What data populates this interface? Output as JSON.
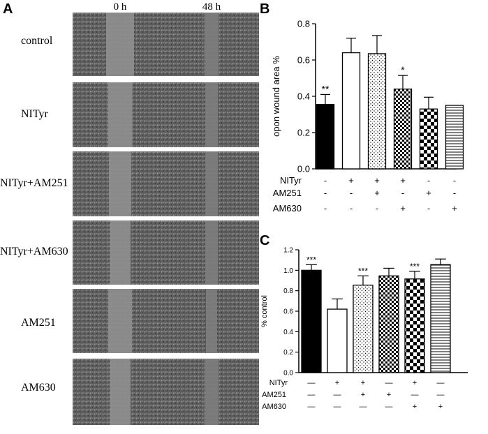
{
  "panels": {
    "a": "A",
    "b": "B",
    "c": "C"
  },
  "panel_a": {
    "columns": [
      "0 h",
      "48 h"
    ],
    "rows": [
      "control",
      "NITyr",
      "NITyr+AM251",
      "NITyr+AM630",
      "AM251",
      "AM630"
    ]
  },
  "chart_data": [
    {
      "type": "bar",
      "ylabel": "opon wound area %",
      "ylim": [
        0,
        0.8
      ],
      "yticks": [
        "0.0",
        "0.2",
        "0.4",
        "0.6",
        "0.8"
      ],
      "categories": [
        "1",
        "2",
        "3",
        "4",
        "5",
        "6"
      ],
      "values": [
        0.355,
        0.64,
        0.635,
        0.44,
        0.33,
        0.35
      ],
      "errors": [
        0.055,
        0.08,
        0.1,
        0.075,
        0.065,
        0
      ],
      "significance": [
        "**",
        "",
        "",
        "*",
        "",
        ""
      ],
      "patterns": [
        "solid",
        "open",
        "dots",
        "checker",
        "checker-large",
        "hlines"
      ],
      "treatment_rows": [
        {
          "name": "NITyr",
          "signs": [
            "-",
            "+",
            "+",
            "+",
            "-",
            "-"
          ]
        },
        {
          "name": "AM251",
          "signs": [
            "-",
            "-",
            "+",
            "-",
            "+",
            "-"
          ]
        },
        {
          "name": "AM630",
          "signs": [
            "-",
            "-",
            "-",
            "+",
            "-",
            "+"
          ]
        }
      ]
    },
    {
      "type": "bar",
      "ylabel": "% control",
      "ylim": [
        0,
        1.2
      ],
      "yticks": [
        "0.0",
        "0.2",
        "0.4",
        "0.6",
        "0.8",
        "1.0",
        "1.2"
      ],
      "categories": [
        "1",
        "2",
        "3",
        "4",
        "5",
        "6"
      ],
      "values": [
        1.0,
        0.62,
        0.855,
        0.945,
        0.915,
        1.055
      ],
      "errors": [
        0.055,
        0.1,
        0.09,
        0.075,
        0.075,
        0.055
      ],
      "significance": [
        "***",
        "",
        "***",
        "",
        "***",
        ""
      ],
      "patterns": [
        "solid",
        "open",
        "dots",
        "checker",
        "checker-large",
        "hlines"
      ],
      "treatment_rows": [
        {
          "name": "NITyr",
          "signs": [
            "—",
            "+",
            "+",
            "—",
            "+",
            "—"
          ]
        },
        {
          "name": "AM251",
          "signs": [
            "—",
            "—",
            "+",
            "+",
            "—",
            "—"
          ]
        },
        {
          "name": "AM630",
          "signs": [
            "—",
            "—",
            "—",
            "—",
            "+",
            "+"
          ]
        }
      ]
    }
  ]
}
